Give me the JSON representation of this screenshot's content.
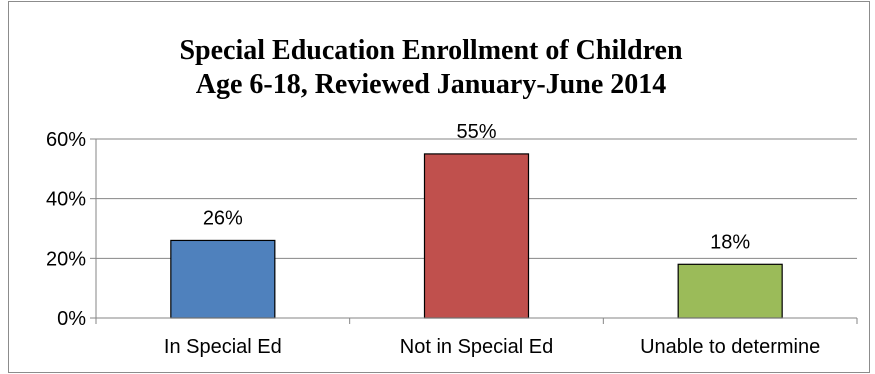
{
  "chart_data": {
    "type": "bar",
    "title": "Special Education Enrollment of Children Age 6-18, Reviewed January-June 2014",
    "title_lines": [
      "Special Education Enrollment of Children",
      "Age 6-18, Reviewed January-June 2014"
    ],
    "xlabel": "",
    "ylabel": "",
    "categories": [
      "In Special Ed",
      "Not in Special Ed",
      "Unable to determine"
    ],
    "values": [
      26,
      55,
      18
    ],
    "data_labels": [
      "26%",
      "55%",
      "18%"
    ],
    "colors": [
      "#4f81bd",
      "#c0504d",
      "#9bbb59"
    ],
    "ylim": [
      0,
      60
    ],
    "yticks": [
      0,
      20,
      40,
      60
    ],
    "ytick_labels": [
      "0%",
      "20%",
      "40%",
      "60%"
    ],
    "grid": true,
    "legend": "none"
  }
}
